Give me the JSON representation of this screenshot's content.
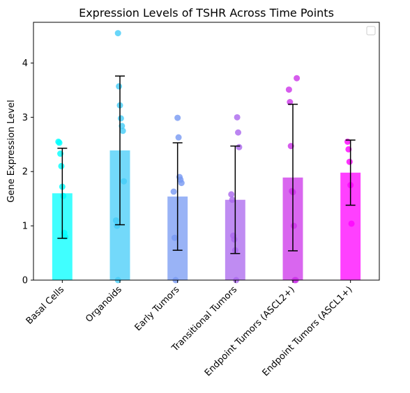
{
  "chart_data": {
    "type": "bar",
    "title": "Expression Levels of TSHR Across Time Points",
    "xlabel": "",
    "ylabel": "Gene Expression Level",
    "ylim": [
      0,
      4.75
    ],
    "yticks": [
      0,
      1,
      2,
      3,
      4
    ],
    "grid": false,
    "legend": {
      "placement": "top-right",
      "entries": []
    },
    "categories": [
      "Basal Cells",
      "Organoids",
      "Early Tumors",
      "Transitional Tumors",
      "Endpoint Tumors (ASCL2+)",
      "Endpoint Tumors (ASCL1+)"
    ],
    "values": [
      1.6,
      2.39,
      1.54,
      1.48,
      1.89,
      1.98
    ],
    "error": [
      0.83,
      1.37,
      0.99,
      0.99,
      1.35,
      0.6
    ],
    "colors": [
      "#00ffff",
      "#44ccf8",
      "#7799f3",
      "#aa66ee",
      "#cc33e9",
      "#ff00ff"
    ],
    "points": [
      [
        2.55,
        2.53,
        2.33,
        2.1,
        1.72,
        1.55,
        0.87,
        0.8
      ],
      [
        4.55,
        3.57,
        3.22,
        2.98,
        2.84,
        2.75,
        1.82,
        1.1,
        1.0,
        0.0
      ],
      [
        2.99,
        2.63,
        1.9,
        1.85,
        1.79,
        1.63,
        0.78,
        0.0
      ],
      [
        3.0,
        2.72,
        2.45,
        1.58,
        1.48,
        0.82,
        0.75,
        0.55,
        0.0
      ],
      [
        3.72,
        3.51,
        3.28,
        2.47,
        1.64,
        1.62,
        1.0,
        0.0,
        0.0
      ],
      [
        2.55,
        2.41,
        2.18,
        1.75,
        1.04
      ]
    ]
  }
}
